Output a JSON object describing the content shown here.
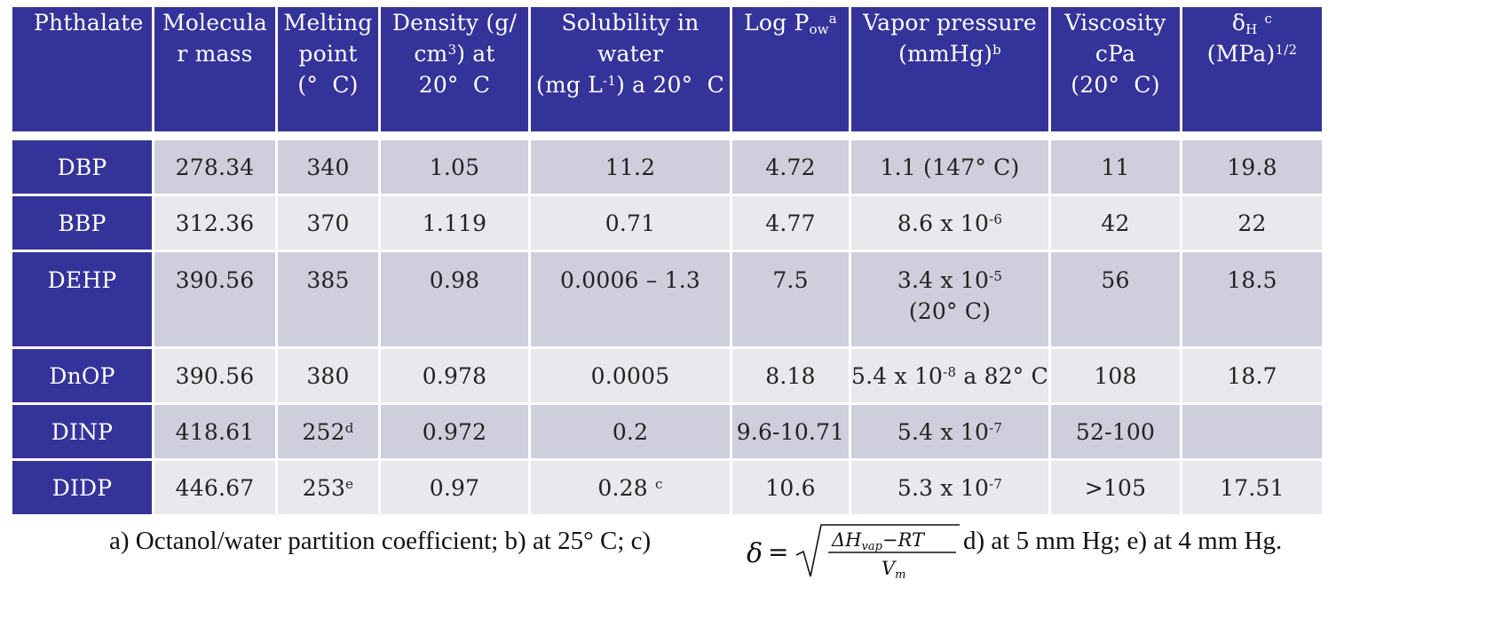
{
  "table": {
    "headers": [
      {
        "main": "Phthalate"
      },
      {
        "main": "Molecula r mass"
      },
      {
        "main": "Melting point (°  C)"
      },
      {
        "main": "Density (g/cm³) at 20°  C"
      },
      {
        "main": "Solubility in water (mg L⁻¹) a 20°  C"
      },
      {
        "main": "Log P",
        "sub": "ow",
        "sup": "a"
      },
      {
        "main": "Vapor pressure (mmHg)",
        "sup": "b"
      },
      {
        "main": "Viscosity cPa (20°  C)"
      },
      {
        "main": "δH (MPa)",
        "sub": "H",
        "sup": "1/2",
        "note": "c"
      }
    ],
    "rows": [
      {
        "name": "DBP",
        "mass": "278.34",
        "mp": "340",
        "mp_sup": "",
        "density": "1.05",
        "solubility": "11.2",
        "sol_sup": "",
        "logp": "4.72",
        "vp": "1.1 (147°  C)",
        "visc": "11",
        "delta": "19.8"
      },
      {
        "name": "BBP",
        "mass": "312.36",
        "mp": "370",
        "mp_sup": "",
        "density": "1.119",
        "solubility": "0.71",
        "sol_sup": "",
        "logp": "4.77",
        "vp": "8.6 x 10",
        "vp_sup": "-6",
        "visc": "42",
        "delta": "22"
      },
      {
        "name": "DEHP",
        "mass": "390.56",
        "mp": "385",
        "mp_sup": "",
        "density": "0.98",
        "solubility": "0.0006  –  1.3",
        "sol_sup": "",
        "logp": "7.5",
        "vp": "3.4 x 10",
        "vp_sup": "-5",
        "vp_line2": "(20°  C)",
        "visc": "56",
        "delta": "18.5"
      },
      {
        "name": "DnOP",
        "mass": "390.56",
        "mp": "380",
        "mp_sup": "",
        "density": "0.978",
        "solubility": "0.0005",
        "sol_sup": "",
        "logp": "8.18",
        "vp": "5.4 x 10",
        "vp_sup": "-8",
        "vp_tail": " a 82°  C",
        "visc": "108",
        "delta": "18.7"
      },
      {
        "name": "DINP",
        "mass": "418.61",
        "mp": "252",
        "mp_sup": "d",
        "density": "0.972",
        "solubility": "0.2",
        "sol_sup": "",
        "logp": "9.6-10.71",
        "vp": "5.4 x 10",
        "vp_sup": "-7",
        "visc": "52-100",
        "delta": ""
      },
      {
        "name": "DIDP",
        "mass": "446.67",
        "mp": "253",
        "mp_sup": "e",
        "density": "0.97",
        "solubility": "0.28",
        "sol_sup": "c",
        "logp": "10.6",
        "vp": "5.3 x 10",
        "vp_sup": "-7",
        "visc": ">105",
        "delta": "17.51"
      }
    ]
  },
  "footnote": {
    "part1": "a) Octanol/water partition coefficient; b) at 25°  C; c)",
    "part2": "d) at 5 mm Hg; e) at 4 mm Hg.",
    "formula": {
      "lhs": "δ",
      "numerator": "ΔH",
      "num_sub": "vap",
      "num_tail": "−RT",
      "denominator": "V",
      "den_sub": "m"
    }
  },
  "colors": {
    "header_bg": "#34339a",
    "row_dark": "#cfcedc",
    "row_light": "#e8e8ed"
  }
}
